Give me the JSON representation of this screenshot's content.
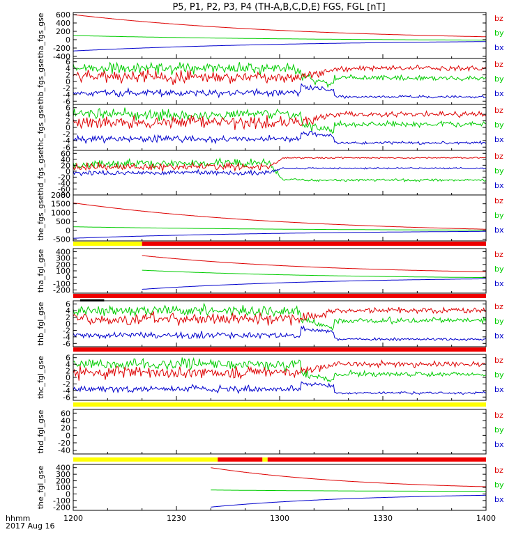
{
  "title": "P5, P1, P2, P3, P4 (TH-A,B,C,D,E) FGS, FGL [nT]",
  "time_axis": {
    "label_line1": "hhmm",
    "label_line2": "2017 Aug 16",
    "ticks": [
      "1200",
      "1230",
      "1300",
      "1330",
      "1400"
    ],
    "range_minutes": [
      0,
      120
    ]
  },
  "legend": {
    "bz": {
      "label": "bz",
      "color": "#dd0000"
    },
    "by": {
      "label": "by",
      "color": "#00cc00"
    },
    "bx": {
      "label": "bx",
      "color": "#0000cc"
    }
  },
  "colors": {
    "flag_yellow": "#ffff00",
    "flag_red": "#ee0000",
    "flag_black": "#000000"
  },
  "chart_data": [
    {
      "type": "line",
      "name": "tha_fgs_gse",
      "ylabel": "tha_fgs_gse",
      "ylim": [
        -450,
        650
      ],
      "yticks": [
        600,
        400,
        200,
        0,
        -200,
        -400
      ],
      "kind": "decay",
      "start": 0,
      "end": 120,
      "bz": [
        600,
        70
      ],
      "by": [
        100,
        -10
      ],
      "bx": [
        -270,
        -45
      ]
    },
    {
      "type": "line",
      "name": "thb_fgs_gse",
      "ylabel": "thb_fgs_gse",
      "ylim": [
        -7,
        7
      ],
      "yticks": [
        6,
        4,
        2,
        0,
        -2,
        -4,
        -6
      ],
      "kind": "noisy",
      "start": 0,
      "end": 120
    },
    {
      "type": "line",
      "name": "thc_fgs_gse",
      "ylabel": "thc_fgs_gse",
      "ylim": [
        -7,
        7
      ],
      "yticks": [
        6,
        4,
        2,
        0,
        -2,
        -4,
        -6
      ],
      "kind": "noisy",
      "start": 0,
      "end": 120
    },
    {
      "type": "line",
      "name": "thd_fgs_gse",
      "ylabel": "thd_fgs_gse",
      "ylim": [
        -80,
        70
      ],
      "yticks": [
        60,
        40,
        20,
        0,
        -20,
        -40,
        -60,
        -80
      ],
      "kind": "thd",
      "start": 0,
      "end": 120
    },
    {
      "type": "line",
      "name": "the_fgs_gse",
      "ylabel": "the_fgs_gse",
      "ylim": [
        -600,
        2000
      ],
      "yticks": [
        2000,
        1500,
        1000,
        500,
        0,
        -500
      ],
      "kind": "decay",
      "start": 0,
      "end": 120,
      "bz": [
        1550,
        60
      ],
      "by": [
        200,
        10
      ],
      "bx": [
        -450,
        -60
      ]
    },
    {
      "type": "line",
      "name": "tha_fgl_gse",
      "ylabel": "tha_fgl_gse",
      "ylim": [
        -250,
        450
      ],
      "yticks": [
        400,
        300,
        200,
        100,
        0,
        -100,
        -200
      ],
      "kind": "decay",
      "start": 20,
      "end": 120,
      "bz": [
        340,
        85
      ],
      "by": [
        110,
        -5
      ],
      "bx": [
        -190,
        -25
      ]
    },
    {
      "type": "line",
      "name": "thb_fgl_gse",
      "ylabel": "thb_fgl_gse",
      "ylim": [
        -7,
        7
      ],
      "yticks": [
        6,
        4,
        2,
        0,
        -2,
        -4,
        -6
      ],
      "kind": "noisy",
      "start": 0,
      "end": 120
    },
    {
      "type": "line",
      "name": "thc_fgl_gse",
      "ylabel": "thc_fgl_gse",
      "ylim": [
        -7,
        7
      ],
      "yticks": [
        6,
        4,
        2,
        0,
        -2,
        -4,
        -6
      ],
      "kind": "noisy",
      "start": 0,
      "end": 120
    },
    {
      "type": "line",
      "name": "thd_fgl_gse",
      "ylabel": "thd_fgl_gse",
      "ylim": [
        -50,
        70
      ],
      "yticks": [
        60,
        40,
        20,
        0,
        -20,
        -40
      ],
      "kind": "empty",
      "start": 0,
      "end": 120
    },
    {
      "type": "line",
      "name": "the_fgl_gse",
      "ylabel": "the_fgl_gse",
      "ylim": [
        -250,
        450
      ],
      "yticks": [
        400,
        300,
        200,
        100,
        0,
        -100,
        -200
      ],
      "kind": "decay",
      "start": 40,
      "end": 120,
      "bz": [
        400,
        110
      ],
      "by": [
        60,
        40
      ],
      "bx": [
        -200,
        -20
      ]
    }
  ]
}
